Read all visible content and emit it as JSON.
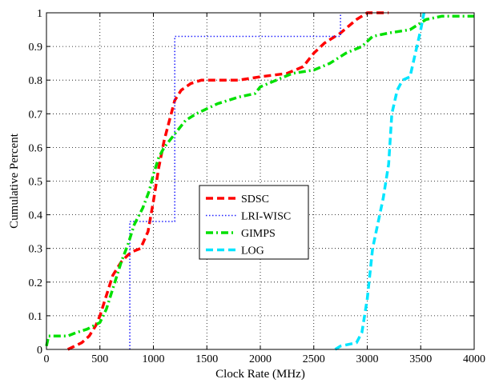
{
  "chart_data": {
    "type": "line",
    "xlabel": "Clock Rate (MHz)",
    "ylabel": "Cumulative Percent",
    "xlim": [
      0,
      4000
    ],
    "ylim": [
      0,
      1
    ],
    "xticks": [
      0,
      500,
      1000,
      1500,
      2000,
      2500,
      3000,
      3500,
      4000
    ],
    "yticks": [
      0,
      0.1,
      0.2,
      0.3,
      0.4,
      0.5,
      0.6,
      0.7,
      0.8,
      0.9,
      1
    ],
    "grid": true,
    "legend_position": "center-left",
    "series": [
      {
        "name": "SDSC",
        "color": "#ff0000",
        "dash": "dashed",
        "points": [
          [
            200,
            0
          ],
          [
            330,
            0.02
          ],
          [
            400,
            0.04
          ],
          [
            460,
            0.07
          ],
          [
            500,
            0.1
          ],
          [
            560,
            0.16
          ],
          [
            620,
            0.22
          ],
          [
            700,
            0.26
          ],
          [
            760,
            0.28
          ],
          [
            800,
            0.29
          ],
          [
            880,
            0.3
          ],
          [
            950,
            0.35
          ],
          [
            1000,
            0.44
          ],
          [
            1050,
            0.54
          ],
          [
            1100,
            0.62
          ],
          [
            1150,
            0.68
          ],
          [
            1200,
            0.74
          ],
          [
            1260,
            0.77
          ],
          [
            1350,
            0.79
          ],
          [
            1450,
            0.8
          ],
          [
            1800,
            0.8
          ],
          [
            2000,
            0.81
          ],
          [
            2250,
            0.82
          ],
          [
            2400,
            0.84
          ],
          [
            2500,
            0.88
          ],
          [
            2600,
            0.91
          ],
          [
            2750,
            0.94
          ],
          [
            2900,
            0.98
          ],
          [
            3000,
            1.0
          ],
          [
            3200,
            1.0
          ]
        ]
      },
      {
        "name": "LRI-WISC",
        "color": "#2222ff",
        "dash": "dotted",
        "points": [
          [
            780,
            0
          ],
          [
            780,
            0.38
          ],
          [
            1200,
            0.38
          ],
          [
            1200,
            0.93
          ],
          [
            2750,
            0.93
          ],
          [
            2750,
            1.0
          ]
        ]
      },
      {
        "name": "GIMPS",
        "color": "#00e000",
        "dash": "dashdot",
        "points": [
          [
            0,
            0.01
          ],
          [
            20,
            0.04
          ],
          [
            200,
            0.04
          ],
          [
            280,
            0.05
          ],
          [
            380,
            0.06
          ],
          [
            500,
            0.08
          ],
          [
            560,
            0.12
          ],
          [
            620,
            0.18
          ],
          [
            700,
            0.26
          ],
          [
            760,
            0.31
          ],
          [
            820,
            0.37
          ],
          [
            900,
            0.42
          ],
          [
            960,
            0.47
          ],
          [
            1000,
            0.52
          ],
          [
            1050,
            0.57
          ],
          [
            1100,
            0.6
          ],
          [
            1200,
            0.64
          ],
          [
            1300,
            0.68
          ],
          [
            1400,
            0.7
          ],
          [
            1600,
            0.73
          ],
          [
            1800,
            0.75
          ],
          [
            1950,
            0.76
          ],
          [
            2000,
            0.78
          ],
          [
            2150,
            0.8
          ],
          [
            2300,
            0.82
          ],
          [
            2500,
            0.83
          ],
          [
            2650,
            0.85
          ],
          [
            2800,
            0.88
          ],
          [
            2950,
            0.9
          ],
          [
            3050,
            0.93
          ],
          [
            3200,
            0.94
          ],
          [
            3400,
            0.95
          ],
          [
            3550,
            0.98
          ],
          [
            3700,
            0.99
          ],
          [
            4000,
            0.99
          ]
        ]
      },
      {
        "name": "LOG",
        "color": "#00e5ff",
        "dash": "dashed",
        "points": [
          [
            2700,
            0
          ],
          [
            2750,
            0.01
          ],
          [
            2900,
            0.02
          ],
          [
            2950,
            0.05
          ],
          [
            3000,
            0.15
          ],
          [
            3050,
            0.3
          ],
          [
            3150,
            0.45
          ],
          [
            3200,
            0.55
          ],
          [
            3230,
            0.7
          ],
          [
            3280,
            0.77
          ],
          [
            3330,
            0.8
          ],
          [
            3400,
            0.81
          ],
          [
            3450,
            0.88
          ],
          [
            3500,
            0.95
          ],
          [
            3530,
            1.0
          ]
        ]
      }
    ]
  }
}
